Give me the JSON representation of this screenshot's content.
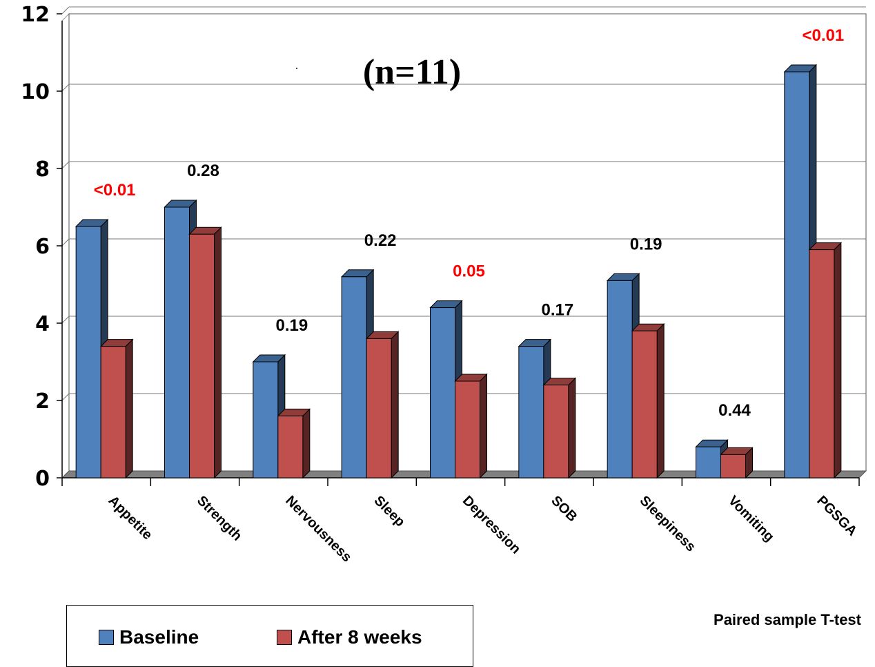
{
  "chart_data": {
    "type": "bar",
    "title": "(n=11)",
    "note": "Paired sample T-test",
    "categories": [
      "Appetite",
      "Strength",
      "Nervousness",
      "Sleep",
      "Depression",
      "SOB",
      "Sleepiness",
      "Vomiting",
      "PGSGA"
    ],
    "series": [
      {
        "name": "Baseline",
        "color": "#4f81bd",
        "values": [
          6.5,
          7.0,
          3.0,
          5.2,
          4.4,
          3.4,
          5.1,
          0.8,
          10.5
        ]
      },
      {
        "name": "After 8 weeks",
        "color": "#c0504d",
        "values": [
          3.4,
          6.3,
          1.6,
          3.6,
          2.5,
          2.4,
          3.8,
          0.6,
          5.9
        ]
      }
    ],
    "p_values": [
      {
        "text": "<0.01",
        "color": "#ff0000"
      },
      {
        "text": "0.28",
        "color": "#000000"
      },
      {
        "text": "0.19",
        "color": "#000000"
      },
      {
        "text": "0.22",
        "color": "#000000"
      },
      {
        "text": "0.05",
        "color": "#ff0000"
      },
      {
        "text": "0.17",
        "color": "#000000"
      },
      {
        "text": "0.19",
        "color": "#000000"
      },
      {
        "text": "0.44",
        "color": "#000000"
      },
      {
        "text": "<0.01",
        "color": "#ff0000"
      }
    ],
    "ylim": [
      0,
      12
    ],
    "yticks": [
      0,
      2,
      4,
      6,
      8,
      10,
      12
    ],
    "grid": true,
    "legend_position": "bottom-left"
  }
}
